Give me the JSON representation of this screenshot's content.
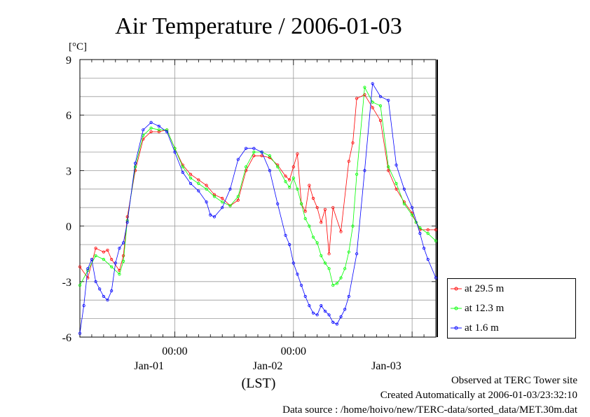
{
  "chart_data": {
    "type": "line",
    "title": "Air Temperature / 2006-01-03",
    "ylabel": "[°C]",
    "xlabel": "(LST)",
    "ylim": [
      -6,
      9
    ],
    "yticks": [
      9,
      6,
      3,
      0,
      -3,
      -6
    ],
    "x_unit": "hours since 2006-01-01 00:00 LST",
    "xlim": [
      -12,
      78
    ],
    "x_ticks_top": [
      {
        "x": 12,
        "label": "00:00"
      },
      {
        "x": 42,
        "label": "00:00"
      }
    ],
    "x_ticks_bottom": [
      {
        "x": 0,
        "label": "Jan-01"
      },
      {
        "x": 30,
        "label": "Jan-02"
      },
      {
        "x": 60,
        "label": "Jan-03"
      }
    ],
    "grid": true,
    "legend_position": "bottom-right outside",
    "series": [
      {
        "name": "at 29.5 m",
        "color": "#ff0000",
        "x": [
          -12,
          -10,
          -8,
          -6,
          -5,
          -4,
          -2,
          -1,
          0,
          2,
          4,
          6,
          8,
          10,
          12,
          14,
          16,
          18,
          20,
          22,
          24,
          26,
          28,
          30,
          32,
          34,
          36,
          38,
          40,
          41,
          42,
          43,
          44,
          45,
          46,
          47,
          48,
          49,
          50,
          51,
          52,
          54,
          56,
          57,
          58,
          60,
          62,
          64,
          66,
          68,
          70,
          72,
          73,
          74,
          76,
          78
        ],
        "y": [
          -2.2,
          -2.8,
          -1.2,
          -1.4,
          -1.3,
          -1.8,
          -2.4,
          -1.6,
          0.5,
          3.0,
          4.7,
          5.1,
          5.1,
          5.2,
          4.2,
          3.3,
          2.8,
          2.5,
          2.2,
          1.7,
          1.5,
          1.1,
          1.4,
          3.0,
          3.8,
          3.8,
          3.7,
          3.3,
          2.7,
          2.5,
          3.2,
          3.9,
          1.2,
          0.8,
          2.2,
          1.5,
          1.0,
          0.2,
          0.9,
          -1.5,
          1.0,
          -0.3,
          3.5,
          4.5,
          6.9,
          7.1,
          6.4,
          5.7,
          3.0,
          2.0,
          1.3,
          0.7,
          0.2,
          -0.2,
          -0.2,
          -0.2
        ]
      },
      {
        "name": "at 12.3 m",
        "color": "#00ff00",
        "x": [
          -12,
          -10,
          -8,
          -6,
          -4,
          -2,
          -1,
          0,
          2,
          4,
          6,
          8,
          10,
          12,
          14,
          16,
          18,
          20,
          22,
          24,
          26,
          28,
          30,
          32,
          34,
          36,
          38,
          40,
          41,
          42,
          43,
          44,
          45,
          46,
          47,
          48,
          49,
          50,
          51,
          52,
          53,
          54,
          55,
          56,
          57,
          58,
          60,
          62,
          64,
          66,
          68,
          70,
          72,
          73,
          74,
          76,
          78
        ],
        "y": [
          -3.2,
          -2.4,
          -1.6,
          -1.8,
          -2.2,
          -2.6,
          -1.9,
          0.3,
          3.2,
          4.9,
          5.3,
          5.2,
          5.2,
          4.2,
          3.2,
          2.6,
          2.3,
          2.0,
          1.6,
          1.3,
          1.1,
          1.6,
          3.2,
          4.0,
          4.0,
          3.8,
          3.2,
          2.4,
          2.1,
          2.6,
          2.0,
          1.2,
          0.4,
          0,
          -0.6,
          -0.9,
          -1.6,
          -2.0,
          -2.3,
          -3.2,
          -3.1,
          -2.8,
          -2.3,
          -1.4,
          0,
          2.8,
          7.5,
          6.7,
          6.5,
          3.2,
          2.3,
          1.2,
          0.6,
          0.2,
          -0.1,
          -0.4,
          -0.8
        ]
      },
      {
        "name": "at 1.6 m",
        "color": "#0000ff",
        "x": [
          -12,
          -11,
          -10,
          -9,
          -8,
          -7,
          -6,
          -5,
          -4,
          -3,
          -2,
          -1,
          0,
          2,
          4,
          6,
          8,
          10,
          12,
          14,
          16,
          18,
          20,
          21,
          22,
          24,
          26,
          28,
          30,
          32,
          34,
          36,
          38,
          40,
          41,
          42,
          43,
          44,
          45,
          46,
          47,
          48,
          49,
          50,
          51,
          52,
          53,
          54,
          55,
          56,
          58,
          60,
          62,
          64,
          66,
          68,
          70,
          72,
          74,
          75,
          76,
          78
        ],
        "y": [
          -5.8,
          -4.3,
          -2.3,
          -1.8,
          -3.0,
          -3.4,
          -3.8,
          -4.0,
          -3.5,
          -2.0,
          -1.2,
          -0.9,
          0.2,
          3.4,
          5.2,
          5.6,
          5.4,
          5.1,
          4.0,
          2.9,
          2.3,
          1.9,
          1.3,
          0.6,
          0.5,
          1.0,
          2.0,
          3.6,
          4.2,
          4.2,
          4.0,
          3.0,
          1.2,
          -0.5,
          -1.0,
          -2.0,
          -2.6,
          -3.2,
          -3.8,
          -4.3,
          -4.7,
          -4.8,
          -4.3,
          -4.6,
          -4.8,
          -5.2,
          -5.3,
          -4.9,
          -4.5,
          -3.8,
          -1.5,
          3.0,
          7.7,
          7.0,
          6.8,
          3.3,
          2.0,
          1.0,
          -0.4,
          -1.2,
          -1.8,
          -2.8
        ]
      }
    ]
  },
  "footer": {
    "site": "Observed at TERC Tower site",
    "created": "Created Automatically at 2006-01-03/23:32:10",
    "source": "Data source : /home/hoivo/new/TERC-data/sorted_data/MET.30m.dat"
  }
}
